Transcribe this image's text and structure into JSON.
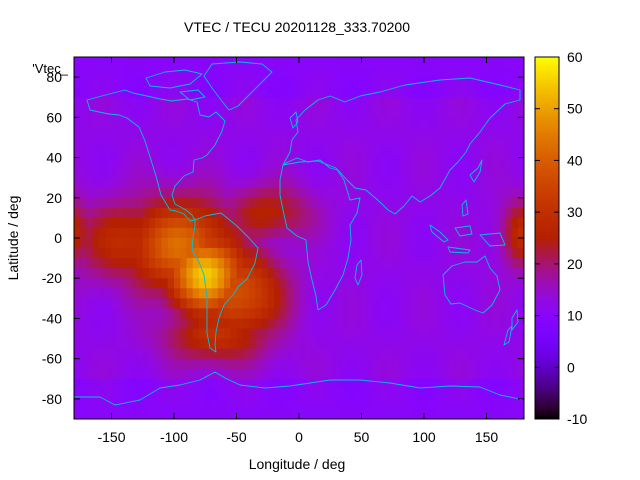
{
  "chart_data": {
    "type": "heatmap",
    "title": "VTEC / TECU 20201128_333.70200",
    "xlabel": "Longitude / deg",
    "ylabel": "Latitude / deg",
    "key_label": "'Vtec_",
    "xlim": [
      -180,
      180
    ],
    "ylim": [
      -90,
      90
    ],
    "xticks": [
      -150,
      -100,
      -50,
      0,
      50,
      100,
      150
    ],
    "yticks": [
      -80,
      -60,
      -40,
      -20,
      0,
      20,
      40,
      60,
      80
    ],
    "colorbar": {
      "range": [
        -10,
        60
      ],
      "ticks": [
        -10,
        0,
        10,
        20,
        30,
        40,
        50,
        60
      ],
      "palette": "black-purple-red-orange-yellow"
    },
    "grid_spacing_deg": 5,
    "features": [
      {
        "lon": -75,
        "lat": -18,
        "value": 55,
        "sx": 22,
        "sy": 14
      },
      {
        "lon": -95,
        "lat": -4,
        "value": 42,
        "sx": 32,
        "sy": 16
      },
      {
        "lon": -130,
        "lat": -2,
        "value": 30,
        "sx": 35,
        "sy": 14
      },
      {
        "lon": -48,
        "lat": -28,
        "value": 38,
        "sx": 25,
        "sy": 16
      },
      {
        "lon": -25,
        "lat": 12,
        "value": 26,
        "sx": 25,
        "sy": 10
      },
      {
        "lon": -65,
        "lat": -48,
        "value": 30,
        "sx": 30,
        "sy": 10
      },
      {
        "lon": 178,
        "lat": 2,
        "value": 28,
        "sx": 12,
        "sy": 12
      },
      {
        "lon": -170,
        "lat": 0,
        "value": 22,
        "sx": 12,
        "sy": 12
      }
    ],
    "background_value": 12,
    "coastline_color": "#00c0e0"
  }
}
